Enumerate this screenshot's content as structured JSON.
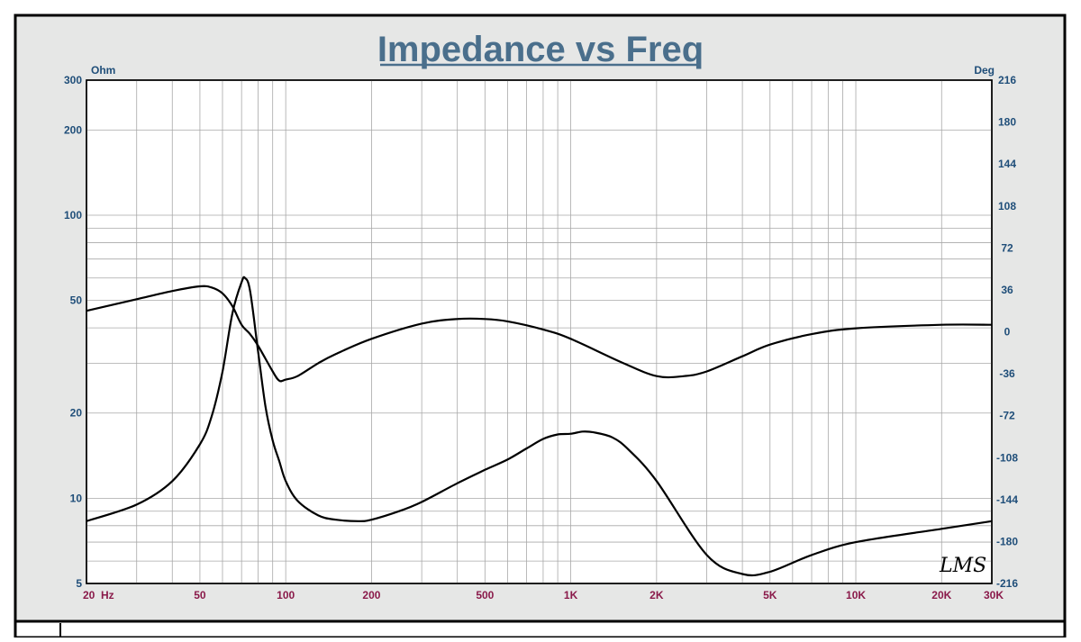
{
  "chart_data": {
    "type": "line",
    "title": "Impedance vs Freq",
    "y_left_unit": "Ohm",
    "y_right_unit": "Deg",
    "x_scale": "log",
    "y_left_scale": "log",
    "xlim": [
      20,
      30000
    ],
    "ylim_left": [
      5,
      300
    ],
    "ylim_right": [
      -216,
      216
    ],
    "grid": true,
    "x_ticks": [
      {
        "value": 20,
        "label": "20  Hz"
      },
      {
        "value": 50,
        "label": "50"
      },
      {
        "value": 100,
        "label": "100"
      },
      {
        "value": 200,
        "label": "200"
      },
      {
        "value": 500,
        "label": "500"
      },
      {
        "value": 1000,
        "label": "1K"
      },
      {
        "value": 2000,
        "label": "2K"
      },
      {
        "value": 5000,
        "label": "5K"
      },
      {
        "value": 10000,
        "label": "10K"
      },
      {
        "value": 20000,
        "label": "20K"
      },
      {
        "value": 30000,
        "label": "30K"
      }
    ],
    "y_left_ticks": [
      {
        "value": 300,
        "label": "300"
      },
      {
        "value": 200,
        "label": "200"
      },
      {
        "value": 100,
        "label": "100"
      },
      {
        "value": 50,
        "label": "50"
      },
      {
        "value": 20,
        "label": "20"
      },
      {
        "value": 10,
        "label": "10"
      },
      {
        "value": 5,
        "label": "5"
      }
    ],
    "y_right_ticks": [
      {
        "value": 216,
        "label": "216"
      },
      {
        "value": 180,
        "label": "180"
      },
      {
        "value": 144,
        "label": "144"
      },
      {
        "value": 108,
        "label": "108"
      },
      {
        "value": 72,
        "label": "72"
      },
      {
        "value": 36,
        "label": "36"
      },
      {
        "value": 0,
        "label": "0"
      },
      {
        "value": -36,
        "label": "-36"
      },
      {
        "value": -72,
        "label": "-72"
      },
      {
        "value": -108,
        "label": "-108"
      },
      {
        "value": -144,
        "label": "-144"
      },
      {
        "value": -180,
        "label": "-180"
      },
      {
        "value": -216,
        "label": "-216"
      }
    ],
    "series": [
      {
        "axis": "left",
        "unit": "Ohm",
        "x": [
          20,
          30,
          40,
          50,
          55,
          60,
          65,
          70,
          72,
          75,
          80,
          85,
          90,
          95,
          100,
          110,
          130,
          150,
          180,
          200,
          250,
          300,
          400,
          500,
          600,
          700,
          800,
          900,
          1000,
          1100,
          1200,
          1400,
          1600,
          2000,
          3000,
          4000,
          5000,
          7000,
          10000,
          20000,
          30000
        ],
        "y": [
          8.3,
          9.5,
          11.5,
          15.5,
          19.5,
          28,
          45,
          58,
          60,
          54,
          33,
          21,
          16,
          13.5,
          11.5,
          9.8,
          8.7,
          8.4,
          8.3,
          8.4,
          9.0,
          9.7,
          11.3,
          12.6,
          13.7,
          15.0,
          16.2,
          16.8,
          16.9,
          17.2,
          17.1,
          16.4,
          14.8,
          11.5,
          6.3,
          5.4,
          5.5,
          6.3,
          7.0,
          7.8,
          8.3
        ]
      },
      {
        "axis": "right",
        "unit": "Deg",
        "x": [
          20,
          30,
          40,
          50,
          55,
          60,
          65,
          70,
          75,
          80,
          90,
          95,
          100,
          110,
          130,
          150,
          200,
          300,
          400,
          500,
          600,
          800,
          1000,
          1500,
          2000,
          2500,
          3000,
          4000,
          5000,
          7000,
          10000,
          20000,
          30000
        ],
        "y": [
          18,
          28,
          35,
          39,
          38,
          33,
          22,
          6,
          -2,
          -12,
          -34,
          -42,
          -41,
          -38,
          -27,
          -19,
          -6,
          7,
          11,
          11,
          9,
          2,
          -6,
          -26,
          -38,
          -38,
          -34,
          -21,
          -11,
          -2,
          3,
          6,
          6
        ]
      }
    ],
    "annotation": "LMS"
  }
}
